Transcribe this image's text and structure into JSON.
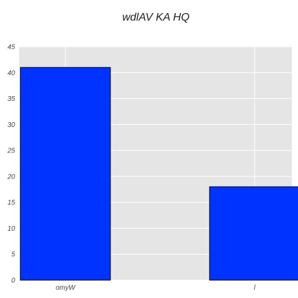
{
  "chart_data": {
    "type": "bar",
    "title": "wdlAV KA HQ",
    "xlabel": "",
    "ylabel": "",
    "categories": [
      "omyW",
      "l"
    ],
    "values": [
      41,
      18
    ],
    "ylim": [
      0,
      45
    ],
    "yticks": [
      0,
      5,
      10,
      15,
      20,
      25,
      30,
      35,
      40,
      45
    ],
    "grid": true,
    "colors": {
      "bar": "#0033ff",
      "bar_edge": "#000000",
      "plot_background": "#e5e5e5",
      "grid": "#ffffff"
    }
  }
}
